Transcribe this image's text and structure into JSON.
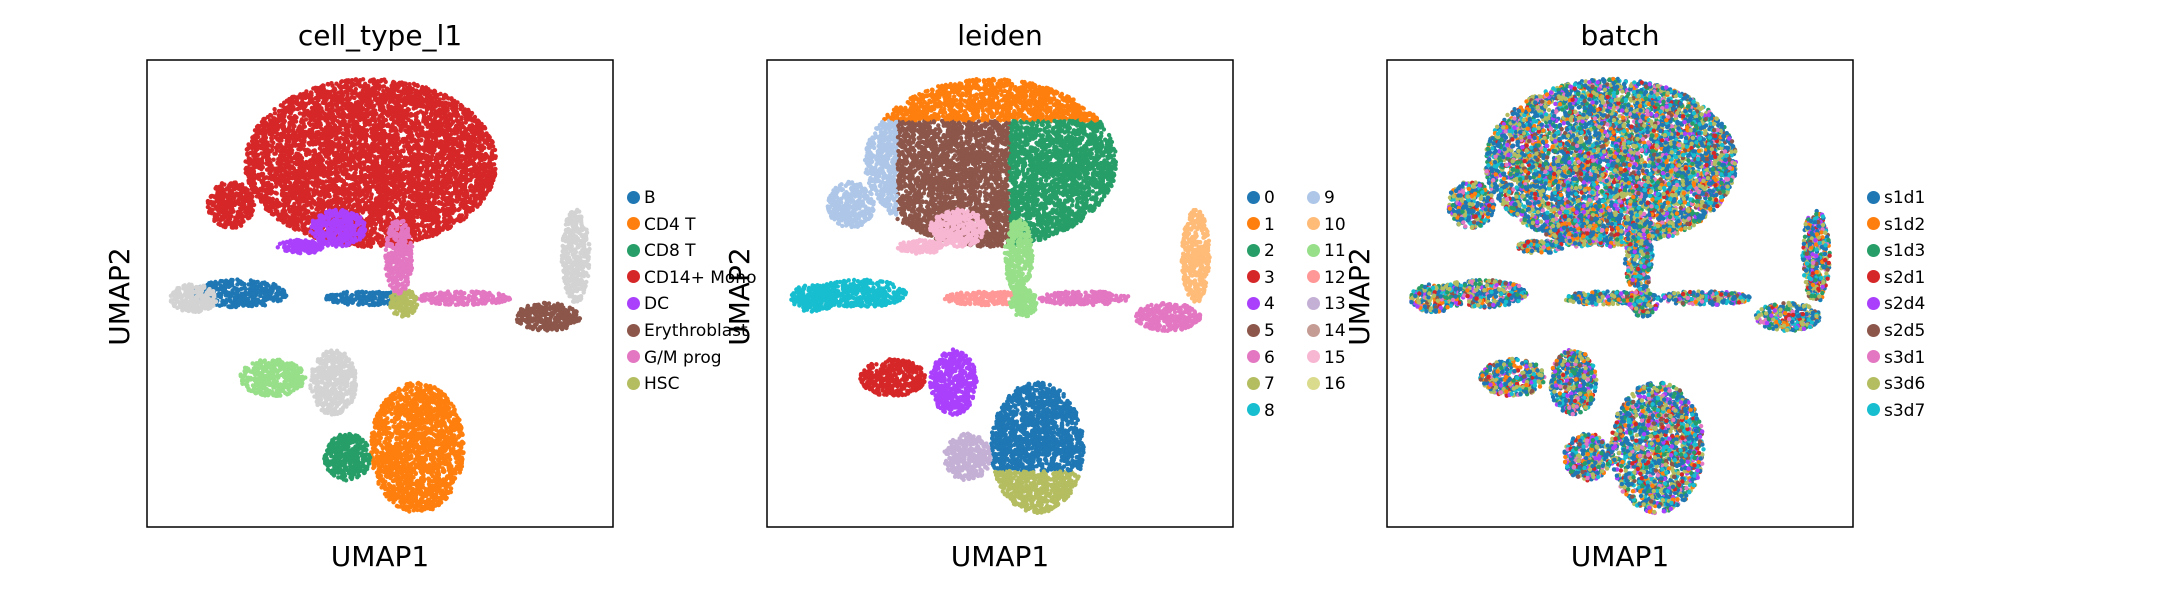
{
  "chart_data": [
    {
      "type": "scatter",
      "title": "cell_type_l1",
      "xlabel": "UMAP1",
      "ylabel": "UMAP2",
      "grid": false,
      "legend_placement": "right",
      "legend": [
        {
          "label": "B",
          "color": "#1f77b4"
        },
        {
          "label": "CD4 T",
          "color": "#ff7f0e"
        },
        {
          "label": "CD8 T",
          "color": "#279e68"
        },
        {
          "label": "CD14+ Mono",
          "color": "#d62728"
        },
        {
          "label": "DC",
          "color": "#aa40fc"
        },
        {
          "label": "Erythroblast",
          "color": "#8c564b"
        },
        {
          "label": "G/M prog",
          "color": "#e377c2"
        },
        {
          "label": "HSC",
          "color": "#b5bd61"
        }
      ],
      "legend_columns": 1
    },
    {
      "type": "scatter",
      "title": "leiden",
      "xlabel": "UMAP1",
      "ylabel": "UMAP2",
      "grid": false,
      "legend_placement": "right",
      "legend": [
        {
          "label": "0",
          "color": "#1f77b4"
        },
        {
          "label": "1",
          "color": "#ff7f0e"
        },
        {
          "label": "2",
          "color": "#279e68"
        },
        {
          "label": "3",
          "color": "#d62728"
        },
        {
          "label": "4",
          "color": "#aa40fc"
        },
        {
          "label": "5",
          "color": "#8c564b"
        },
        {
          "label": "6",
          "color": "#e377c2"
        },
        {
          "label": "7",
          "color": "#b5bd61"
        },
        {
          "label": "8",
          "color": "#17becf"
        },
        {
          "label": "9",
          "color": "#aec7e8"
        },
        {
          "label": "10",
          "color": "#ffbb78"
        },
        {
          "label": "11",
          "color": "#98df8a"
        },
        {
          "label": "12",
          "color": "#ff9896"
        },
        {
          "label": "13",
          "color": "#c5b0d5"
        },
        {
          "label": "14",
          "color": "#c49c94"
        },
        {
          "label": "15",
          "color": "#f7b6d2"
        },
        {
          "label": "16",
          "color": "#dbdb8d"
        }
      ],
      "legend_columns": 2
    },
    {
      "type": "scatter",
      "title": "batch",
      "xlabel": "UMAP1",
      "ylabel": "UMAP2",
      "grid": false,
      "legend_placement": "right",
      "legend": [
        {
          "label": "s1d1",
          "color": "#1f77b4"
        },
        {
          "label": "s1d2",
          "color": "#ff7f0e"
        },
        {
          "label": "s1d3",
          "color": "#279e68"
        },
        {
          "label": "s2d1",
          "color": "#d62728"
        },
        {
          "label": "s2d4",
          "color": "#aa40fc"
        },
        {
          "label": "s2d5",
          "color": "#8c564b"
        },
        {
          "label": "s3d1",
          "color": "#e377c2"
        },
        {
          "label": "s3d6",
          "color": "#b5bd61"
        },
        {
          "label": "s3d7",
          "color": "#17becf"
        }
      ],
      "legend_columns": 1
    }
  ]
}
